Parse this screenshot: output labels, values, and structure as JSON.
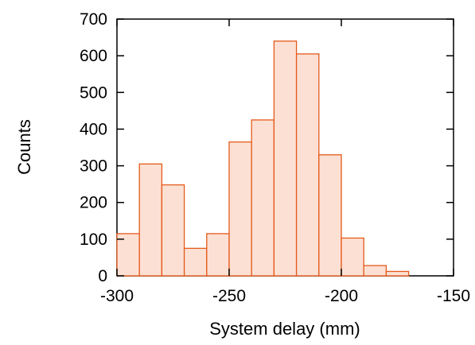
{
  "chart_data": {
    "type": "bar",
    "subtype": "histogram",
    "title": "",
    "xlabel": "System delay (mm)",
    "ylabel": "Counts",
    "xlim": [
      -300,
      -150
    ],
    "ylim": [
      0,
      700
    ],
    "x_ticks": [
      -300,
      -250,
      -200,
      -150
    ],
    "y_ticks": [
      0,
      100,
      200,
      300,
      400,
      500,
      600,
      700
    ],
    "bin_width": 10,
    "bin_starts": [
      -300,
      -290,
      -280,
      -270,
      -260,
      -250,
      -240,
      -230,
      -220,
      -210,
      -200,
      -190,
      -180,
      -170
    ],
    "values": [
      115,
      305,
      248,
      75,
      115,
      365,
      425,
      640,
      605,
      330,
      103,
      28,
      12,
      0
    ],
    "grid": false,
    "legend": "none",
    "colors": {
      "bar_fill": "#fde0d4",
      "bar_edge": "#e35a1b",
      "axis": "#000000"
    }
  }
}
